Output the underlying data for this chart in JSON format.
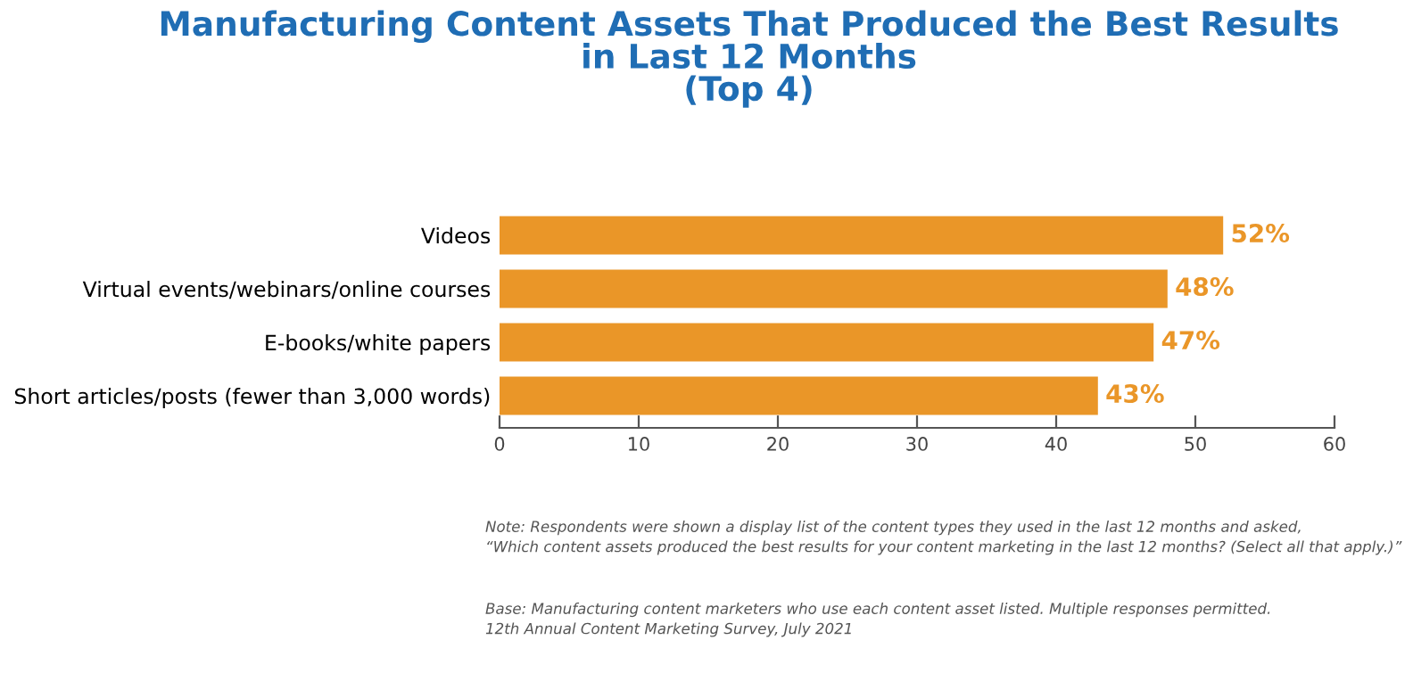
{
  "chart_data": {
    "type": "bar",
    "orientation": "horizontal",
    "title": "Manufacturing Content Assets That Produced the Best Results\nin Last 12 Months\n(Top 4)",
    "categories": [
      "Videos",
      "Virtual events/webinars/online courses",
      "E-books/white papers",
      "Short articles/posts (fewer than 3,000 words)"
    ],
    "values": [
      52,
      48,
      47,
      43
    ],
    "value_labels": [
      "52%",
      "48%",
      "47%",
      "43%"
    ],
    "color": "#ea9628",
    "xlim": [
      0,
      60
    ],
    "xticks": [
      0,
      10,
      20,
      30,
      40,
      50,
      60
    ],
    "grid": false,
    "legend": false,
    "annotations": [
      "Note: Respondents were shown a display list of the content types they used in the last 12 months and asked,\n“Which content assets produced the best results for your content marketing in the last 12 months? (Select all that apply.)”",
      "Base: Manufacturing content marketers who use each content asset listed. Multiple responses permitted.\n12th Annual Content Marketing Survey, July 2021"
    ]
  }
}
